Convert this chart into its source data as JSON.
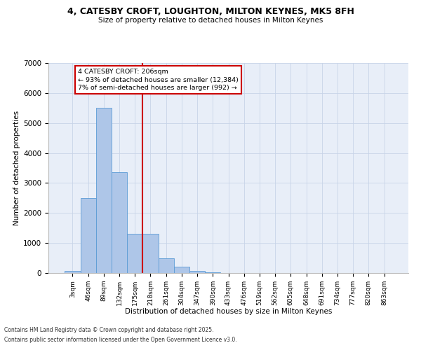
{
  "title_line1": "4, CATESBY CROFT, LOUGHTON, MILTON KEYNES, MK5 8FH",
  "title_line2": "Size of property relative to detached houses in Milton Keynes",
  "xlabel": "Distribution of detached houses by size in Milton Keynes",
  "ylabel": "Number of detached properties",
  "bar_labels": [
    "3sqm",
    "46sqm",
    "89sqm",
    "132sqm",
    "175sqm",
    "218sqm",
    "261sqm",
    "304sqm",
    "347sqm",
    "390sqm",
    "433sqm",
    "476sqm",
    "519sqm",
    "562sqm",
    "605sqm",
    "648sqm",
    "691sqm",
    "734sqm",
    "777sqm",
    "820sqm",
    "863sqm"
  ],
  "bar_values": [
    80,
    2500,
    5500,
    3350,
    1300,
    1300,
    480,
    220,
    80,
    30,
    0,
    0,
    0,
    0,
    0,
    0,
    0,
    0,
    0,
    0,
    0
  ],
  "bar_color": "#aec6e8",
  "bar_edgecolor": "#5b9bd5",
  "grid_color": "#c8d4e8",
  "background_color": "#e8eef8",
  "annotation_text": "4 CATESBY CROFT: 206sqm\n← 93% of detached houses are smaller (12,384)\n7% of semi-detached houses are larger (992) →",
  "annotation_box_facecolor": "#ffffff",
  "annotation_box_edgecolor": "#cc0000",
  "vline_color": "#cc0000",
  "vline_x": 4.5,
  "ylim_max": 7000,
  "yticks": [
    0,
    1000,
    2000,
    3000,
    4000,
    5000,
    6000,
    7000
  ],
  "footnote1": "Contains HM Land Registry data © Crown copyright and database right 2025.",
  "footnote2": "Contains public sector information licensed under the Open Government Licence v3.0."
}
